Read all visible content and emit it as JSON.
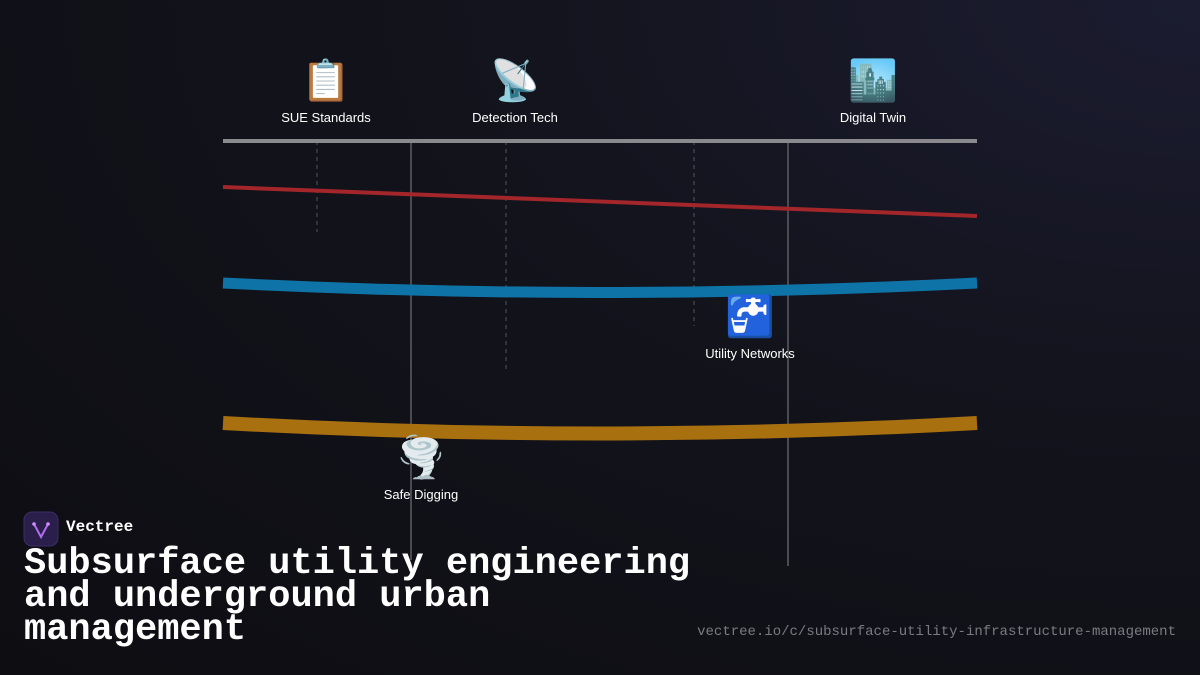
{
  "brand": "Vectree",
  "title": "Subsurface utility engineering and underground urban management",
  "url": "vectree.io/c/subsurface-utility-infrastructure-management",
  "nodes": [
    {
      "icon": "📋",
      "label": "SUE Standards"
    },
    {
      "icon": "📡",
      "label": "Detection Tech"
    },
    {
      "icon": "🏙️",
      "label": "Digital Twin"
    },
    {
      "icon": "🚰",
      "label": "Utility Networks"
    },
    {
      "icon": "🌪️",
      "label": "Safe Digging"
    }
  ]
}
